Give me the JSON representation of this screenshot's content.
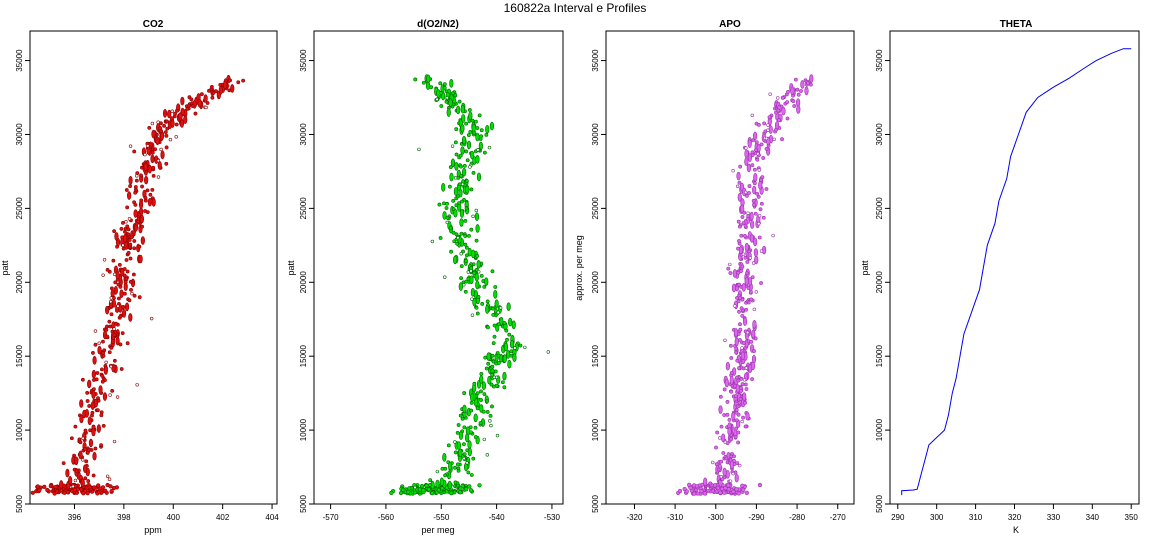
{
  "figure": {
    "title": "160822a   Interval e Profiles",
    "colors": {
      "co2": "#e01010",
      "co2_outline": "#8b0000",
      "o2n2": "#00e000",
      "o2n2_outline": "#006400",
      "apo": "#dd66ee",
      "apo_outline": "#9933aa",
      "theta": "#0000ee"
    }
  },
  "chart_data": [
    {
      "type": "scatter",
      "title": "CO2",
      "xlabel": "ppm",
      "ylabel": "patt",
      "xlim": [
        394.2,
        404.2
      ],
      "ylim": [
        5000,
        37000
      ],
      "xticks": [
        396,
        398,
        400,
        402,
        404
      ],
      "yticks": [
        5000,
        10000,
        15000,
        20000,
        25000,
        30000,
        35000
      ],
      "trend": [
        [
          396.0,
          5900
        ],
        [
          396.2,
          7000
        ],
        [
          396.4,
          8500
        ],
        [
          396.5,
          10000
        ],
        [
          396.8,
          12000
        ],
        [
          397.0,
          13500
        ],
        [
          397.3,
          15000
        ],
        [
          397.5,
          16500
        ],
        [
          397.8,
          18000
        ],
        [
          397.9,
          19500
        ],
        [
          398.0,
          21000
        ],
        [
          398.2,
          22500
        ],
        [
          398.4,
          24000
        ],
        [
          398.6,
          25500
        ],
        [
          398.9,
          27000
        ],
        [
          399.1,
          28500
        ],
        [
          399.4,
          30000
        ],
        [
          400.0,
          31000
        ],
        [
          400.8,
          32000
        ],
        [
          401.7,
          33000
        ],
        [
          402.4,
          33500
        ]
      ],
      "spread": 0.9
    },
    {
      "type": "scatter",
      "title": "d(O2/N2)",
      "xlabel": "per meg",
      "ylabel": "patt",
      "xlim": [
        -573,
        -528
      ],
      "ylim": [
        5000,
        37000
      ],
      "xticks": [
        -570,
        -560,
        -550,
        -540,
        -530
      ],
      "yticks": [
        5000,
        10000,
        15000,
        20000,
        25000,
        30000,
        35000
      ],
      "trend": [
        [
          -552,
          5900
        ],
        [
          -548,
          7000
        ],
        [
          -546,
          8500
        ],
        [
          -545,
          10000
        ],
        [
          -543,
          12000
        ],
        [
          -541,
          13500
        ],
        [
          -539,
          15000
        ],
        [
          -538,
          16500
        ],
        [
          -541,
          18000
        ],
        [
          -543,
          19500
        ],
        [
          -545,
          21000
        ],
        [
          -546,
          22500
        ],
        [
          -547,
          24000
        ],
        [
          -547,
          25500
        ],
        [
          -546,
          27000
        ],
        [
          -545,
          28500
        ],
        [
          -544,
          30000
        ],
        [
          -545,
          31000
        ],
        [
          -548,
          32000
        ],
        [
          -550,
          33000
        ],
        [
          -552,
          33500
        ]
      ],
      "spread": 4.5
    },
    {
      "type": "scatter",
      "title": "APO",
      "xlabel": "",
      "ylabel": "approx. per meg",
      "xlim": [
        -327,
        -266
      ],
      "ylim": [
        5000,
        37000
      ],
      "xticks": [
        -320,
        -310,
        -300,
        -290,
        -280,
        -270
      ],
      "yticks": [
        5000,
        10000,
        15000,
        20000,
        25000,
        30000,
        35000
      ],
      "trend": [
        [
          -300,
          5900
        ],
        [
          -298,
          7000
        ],
        [
          -297,
          8500
        ],
        [
          -296,
          10000
        ],
        [
          -295,
          12000
        ],
        [
          -294,
          13500
        ],
        [
          -293,
          15000
        ],
        [
          -293,
          16500
        ],
        [
          -293,
          18000
        ],
        [
          -293,
          19500
        ],
        [
          -293,
          21000
        ],
        [
          -292,
          22500
        ],
        [
          -292,
          24000
        ],
        [
          -292,
          25500
        ],
        [
          -291,
          27000
        ],
        [
          -290,
          28500
        ],
        [
          -288,
          30000
        ],
        [
          -286,
          31000
        ],
        [
          -283,
          32000
        ],
        [
          -280,
          33000
        ],
        [
          -278,
          33500
        ]
      ],
      "spread": 5
    },
    {
      "type": "line",
      "title": "THETA",
      "xlabel": "K",
      "ylabel": "patt",
      "xlim": [
        288,
        352
      ],
      "ylim": [
        5000,
        37000
      ],
      "xticks": [
        290,
        300,
        310,
        320,
        330,
        340,
        350
      ],
      "yticks": [
        5000,
        10000,
        15000,
        20000,
        25000,
        30000,
        35000
      ],
      "points": [
        [
          291,
          5600
        ],
        [
          291,
          5900
        ],
        [
          294,
          5950
        ],
        [
          295,
          6000
        ],
        [
          296,
          7000
        ],
        [
          297,
          8000
        ],
        [
          298,
          9000
        ],
        [
          300,
          9500
        ],
        [
          302,
          10000
        ],
        [
          303,
          11000
        ],
        [
          304,
          12500
        ],
        [
          305,
          13500
        ],
        [
          306,
          15000
        ],
        [
          307,
          16500
        ],
        [
          309,
          18000
        ],
        [
          311,
          19500
        ],
        [
          312,
          21000
        ],
        [
          313,
          22500
        ],
        [
          315,
          24000
        ],
        [
          316,
          25500
        ],
        [
          318,
          27000
        ],
        [
          319,
          28500
        ],
        [
          321,
          30000
        ],
        [
          323,
          31500
        ],
        [
          326,
          32500
        ],
        [
          330,
          33200
        ],
        [
          334,
          33800
        ],
        [
          338,
          34500
        ],
        [
          341,
          35000
        ],
        [
          345,
          35500
        ],
        [
          348,
          35800
        ],
        [
          350,
          35800
        ]
      ]
    }
  ]
}
